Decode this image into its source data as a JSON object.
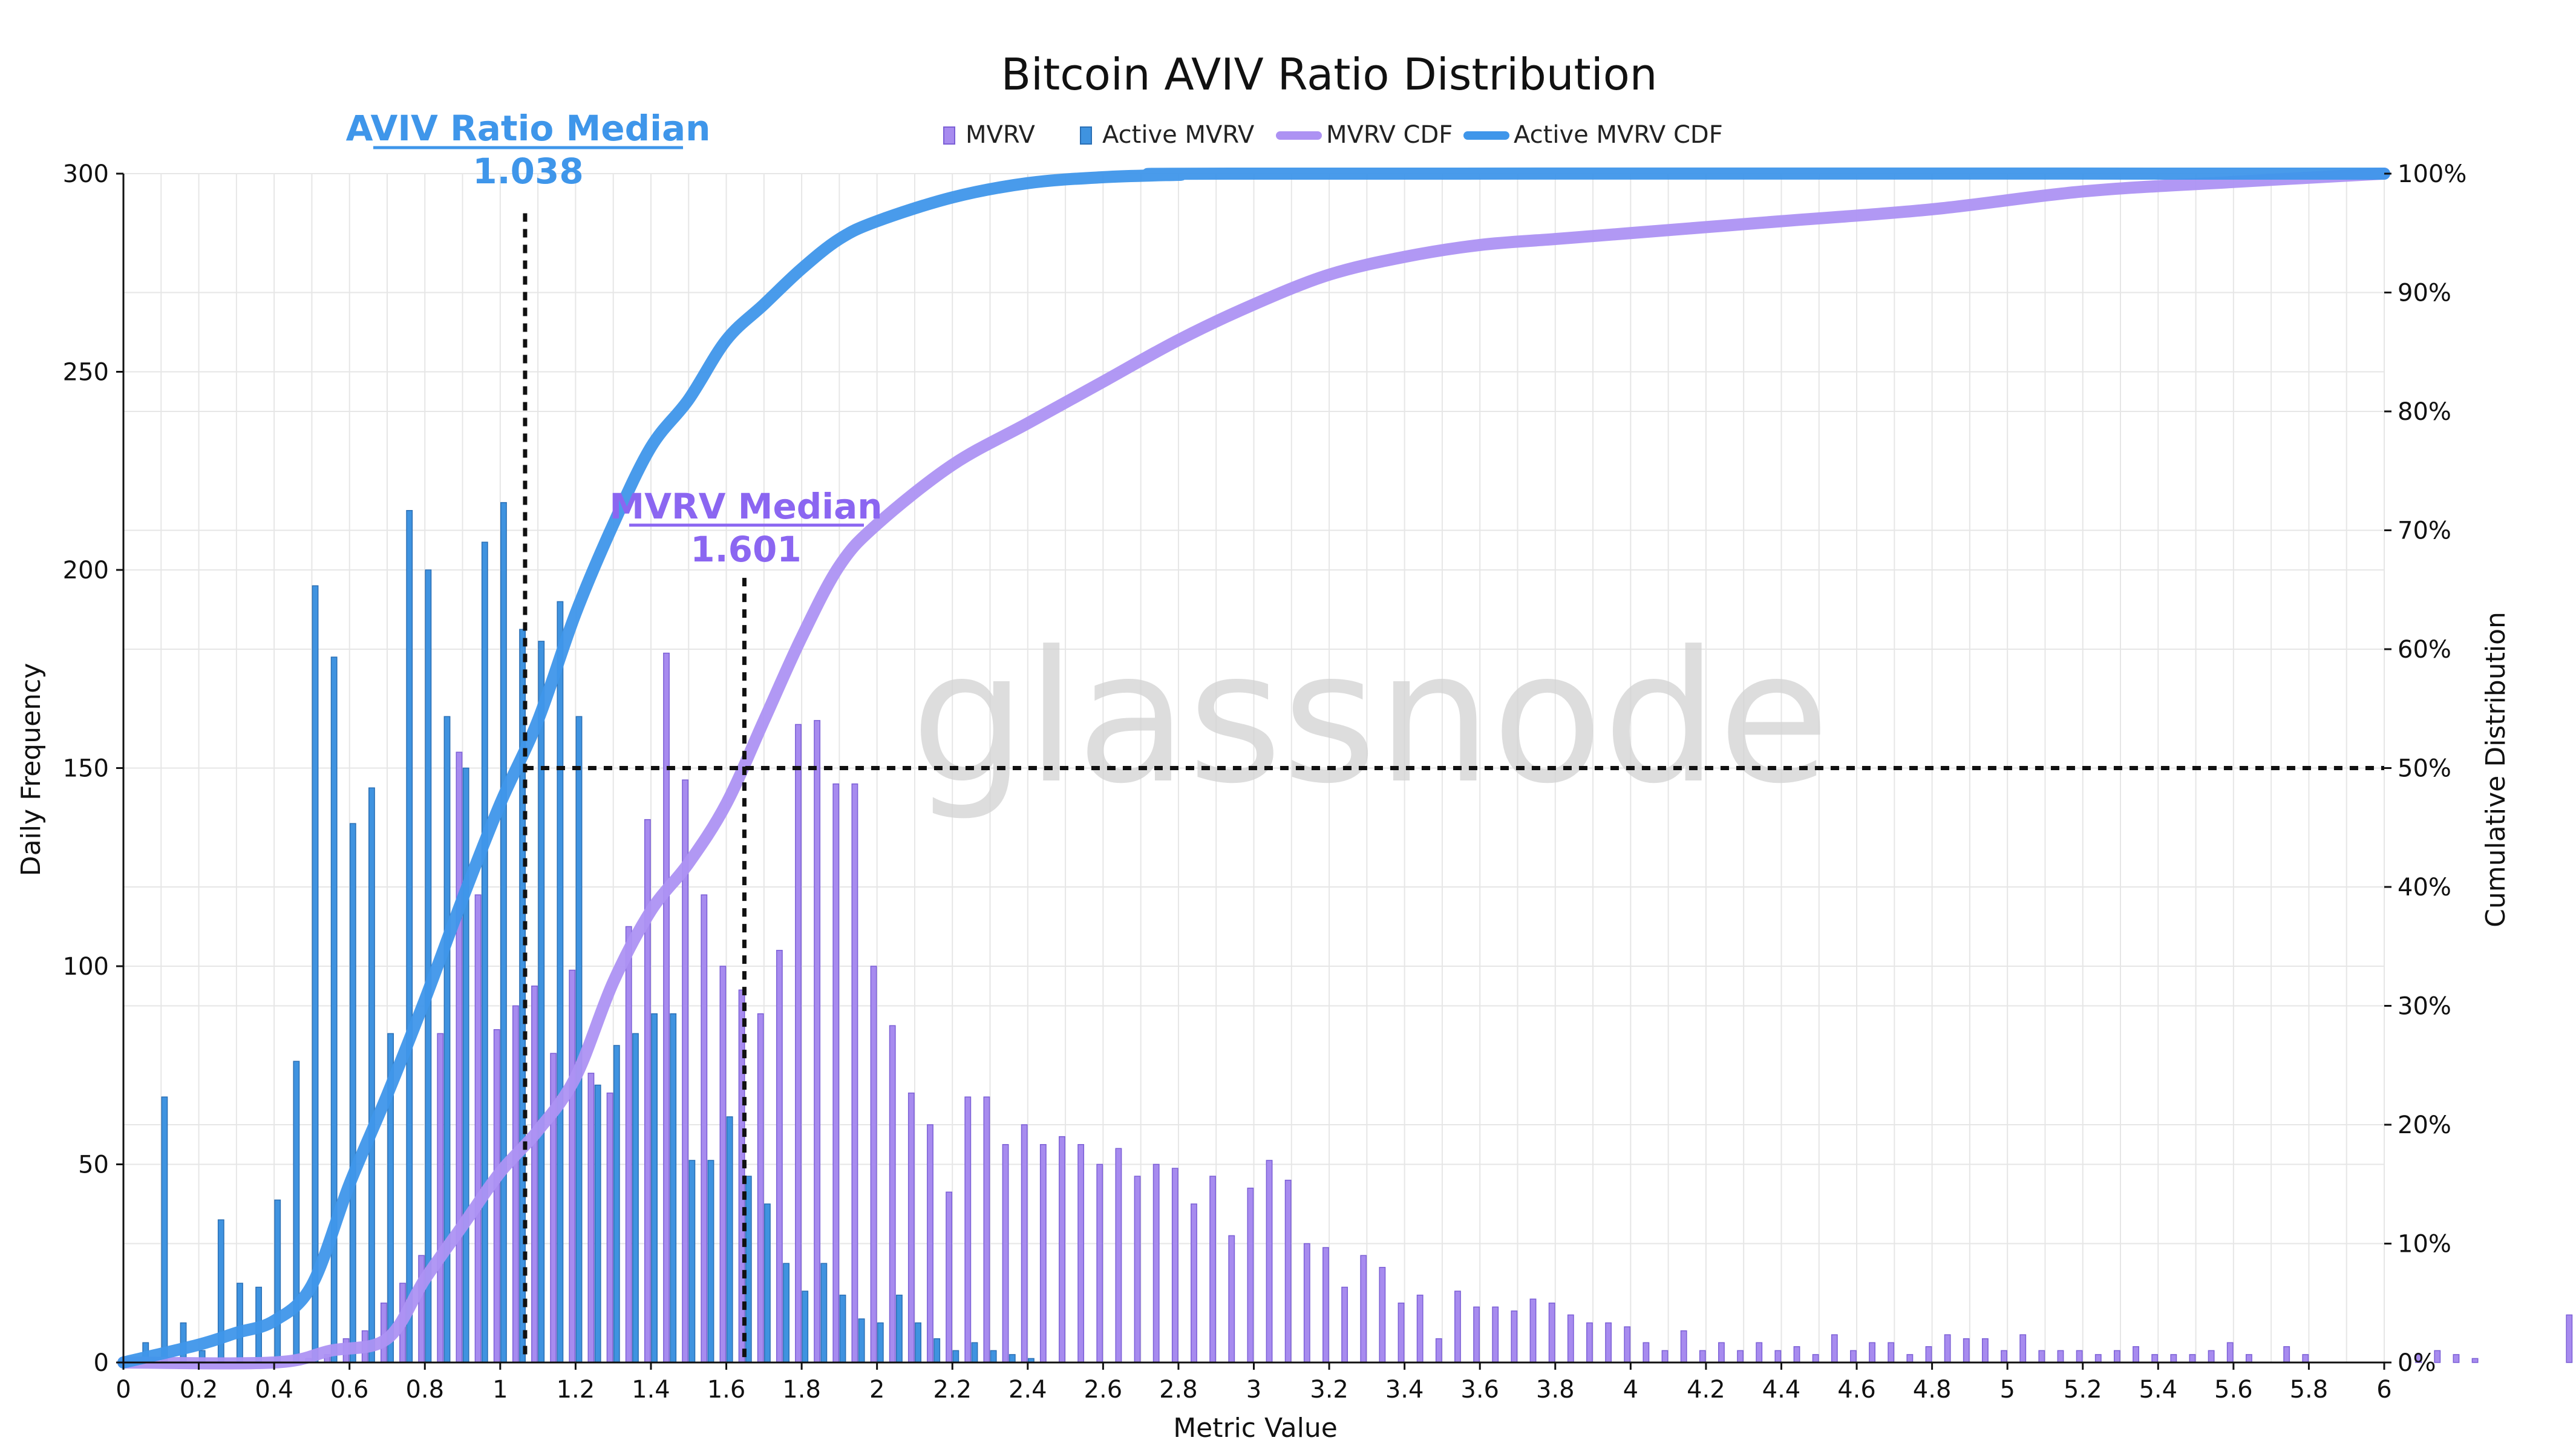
{
  "chart_data": {
    "type": "bar",
    "title": "Bitcoin AVIV Ratio Distribution",
    "xlabel": "Metric Value",
    "ylabel": "Daily Frequency",
    "y2label": "Cumulative Distribution",
    "watermark": "glassnode",
    "xlim": [
      0,
      6
    ],
    "ylim": [
      0,
      300
    ],
    "y2lim": [
      0,
      100
    ],
    "x_ticks": [
      "0",
      "0.2",
      "0.4",
      "0.6",
      "0.8",
      "1",
      "1.2",
      "1.4",
      "1.6",
      "1.8",
      "2",
      "2.2",
      "2.4",
      "2.6",
      "2.8",
      "3",
      "3.2",
      "3.4",
      "3.6",
      "3.8",
      "4",
      "4.2",
      "4.4",
      "4.6",
      "4.8",
      "5",
      "5.2",
      "5.4",
      "5.6",
      "5.8",
      "6"
    ],
    "y_ticks": [
      "0",
      "50",
      "100",
      "150",
      "200",
      "250",
      "300"
    ],
    "y2_ticks": [
      "0%",
      "10%",
      "20%",
      "30%",
      "40%",
      "50%",
      "60%",
      "70%",
      "80%",
      "90%",
      "100%"
    ],
    "legend": [
      {
        "name": "MVRV",
        "kind": "bar",
        "color": "#a78bef"
      },
      {
        "name": "Active MVRV",
        "kind": "bar",
        "color": "#3f93e0"
      },
      {
        "name": "MVRV CDF",
        "kind": "line",
        "color": "#ad92f3"
      },
      {
        "name": "Active MVRV CDF",
        "kind": "line",
        "color": "#3f96ea"
      }
    ],
    "grid": true,
    "legend_position": "top-center",
    "bin_start": 0.05,
    "bin_width": 0.05,
    "series": [
      {
        "name": "MVRV",
        "color": "#a78bef",
        "values": [
          0,
          0,
          0,
          0,
          0,
          0,
          0,
          0,
          0,
          1,
          2,
          6,
          8,
          15,
          20,
          27,
          83,
          154,
          118,
          84,
          90,
          95,
          78,
          99,
          73,
          68,
          110,
          137,
          179,
          147,
          118,
          100,
          94,
          88,
          104,
          161,
          162,
          146,
          146,
          100,
          85,
          68,
          60,
          43,
          67,
          67,
          55,
          60,
          55,
          57,
          55,
          50,
          54,
          47,
          50,
          49,
          40,
          47,
          32,
          44,
          51,
          46,
          30,
          29,
          19,
          27,
          24,
          15,
          17,
          6,
          18,
          14,
          14,
          13,
          16,
          15,
          12,
          10,
          10,
          9,
          5,
          3,
          8,
          3,
          5,
          3,
          5,
          3,
          4,
          2,
          7,
          3,
          5,
          5,
          2,
          4,
          7,
          6,
          6,
          3,
          7,
          3,
          3,
          3,
          2,
          3,
          4,
          2,
          2,
          2,
          3,
          5,
          2,
          0,
          4,
          2,
          0,
          0,
          0,
          0,
          0,
          2,
          3,
          2,
          1,
          0,
          0,
          0,
          0,
          12
        ]
      },
      {
        "name": "Active MVRV",
        "color": "#3f93e0",
        "values": [
          5,
          67,
          10,
          3,
          36,
          20,
          19,
          41,
          76,
          196,
          178,
          136,
          145,
          83,
          215,
          200,
          163,
          150,
          207,
          217,
          185,
          182,
          192,
          163,
          70,
          80,
          83,
          88,
          88,
          51,
          51,
          62,
          47,
          40,
          25,
          18,
          25,
          17,
          11,
          10,
          17,
          10,
          6,
          3,
          5,
          3,
          2,
          1,
          0,
          0,
          0,
          0,
          0,
          0,
          0,
          0,
          0,
          0,
          0,
          0,
          0,
          0,
          0,
          0,
          0,
          0,
          0,
          0,
          0,
          0,
          0,
          0,
          0,
          0,
          0,
          0,
          0,
          0,
          0,
          0,
          0,
          0,
          0,
          0,
          0,
          0,
          0,
          0,
          0,
          0,
          0,
          0,
          0,
          0,
          0,
          0,
          0,
          0,
          0,
          0,
          0,
          0,
          0,
          0,
          0,
          0,
          0,
          0,
          0,
          0,
          0,
          0,
          0,
          0,
          0,
          0,
          0,
          0,
          0,
          0
        ]
      },
      {
        "name": "MVRV CDF",
        "color": "#ad92f3",
        "x": [
          0,
          0.4,
          0.55,
          0.7,
          0.8,
          0.9,
          1.0,
          1.1,
          1.2,
          1.3,
          1.4,
          1.5,
          1.6,
          1.7,
          1.8,
          1.9,
          2.0,
          2.2,
          2.4,
          2.6,
          2.8,
          3.0,
          3.2,
          3.4,
          3.6,
          3.8,
          4.0,
          4.4,
          4.8,
          5.2,
          5.6,
          6.0
        ],
        "values": [
          0,
          0,
          1,
          2,
          7,
          11.5,
          16,
          19.5,
          24,
          32,
          38,
          42,
          47,
          54,
          61,
          67,
          70.5,
          75.5,
          79,
          82.5,
          86,
          89,
          91.5,
          93,
          94,
          94.5,
          95,
          96,
          97,
          98.5,
          99.3,
          100
        ]
      },
      {
        "name": "Active MVRV CDF",
        "color": "#3f96ea",
        "x": [
          0,
          0.2,
          0.3,
          0.4,
          0.5,
          0.6,
          0.7,
          0.8,
          0.9,
          1.0,
          1.1,
          1.2,
          1.3,
          1.4,
          1.5,
          1.6,
          1.7,
          1.8,
          1.9,
          2.0,
          2.2,
          2.4,
          2.6,
          2.8,
          3.0,
          6.0
        ],
        "values": [
          0,
          1.5,
          2.5,
          3.5,
          6.5,
          15,
          22.5,
          30.5,
          39,
          47,
          54,
          63,
          70.5,
          77,
          81,
          86,
          89,
          92,
          94.5,
          96,
          98,
          99.2,
          99.7,
          99.9,
          100,
          100
        ]
      }
    ],
    "median_line": {
      "y_percent": 50
    },
    "medians": [
      {
        "name": "AVIV Ratio Median",
        "value": 1.038,
        "value_label": "1.038",
        "color": "#3f96ea"
      },
      {
        "name": "MVRV Median",
        "value": 1.601,
        "value_label": "1.601",
        "color": "#8b66f1"
      }
    ]
  }
}
